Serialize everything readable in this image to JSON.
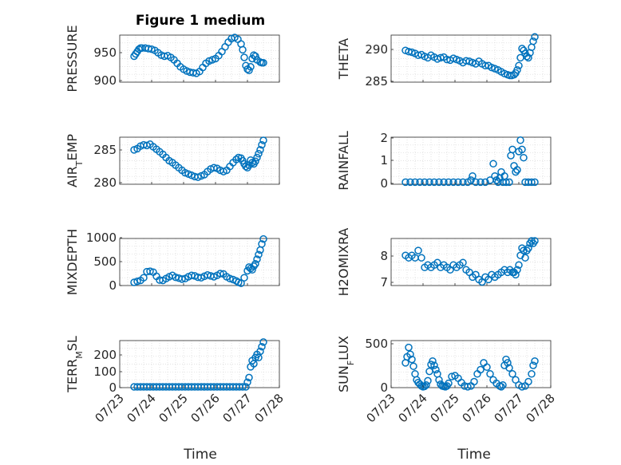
{
  "figure": {
    "title": "Figure 1 medium",
    "xlabel": "Time"
  },
  "chart_data": [
    {
      "type": "scatter",
      "ylabel": "PRESSURE",
      "yticks": [
        "900",
        "950"
      ],
      "ylim": [
        900,
        980
      ],
      "xlim": [
        0,
        5
      ],
      "xticks": [
        "07/23",
        "07/24",
        "07/25",
        "07/26",
        "07/27",
        "07/28"
      ],
      "grid": true,
      "x": [
        0.45,
        0.5,
        0.55,
        0.6,
        0.65,
        0.7,
        0.8,
        0.9,
        1.0,
        1.1,
        1.2,
        1.3,
        1.4,
        1.5,
        1.6,
        1.7,
        1.8,
        1.9,
        2.0,
        2.1,
        2.2,
        2.3,
        2.4,
        2.5,
        2.6,
        2.7,
        2.8,
        2.9,
        3.0,
        3.1,
        3.2,
        3.3,
        3.4,
        3.5,
        3.6,
        3.7,
        3.8,
        3.85,
        3.9,
        3.95,
        4.0,
        4.05,
        4.1,
        4.15,
        4.2,
        4.25,
        4.3,
        4.4,
        4.45,
        4.5
      ],
      "y": [
        944,
        948,
        952,
        956,
        958,
        958,
        958,
        957,
        956,
        954,
        950,
        946,
        944,
        945,
        942,
        938,
        932,
        926,
        922,
        919,
        917,
        916,
        915,
        918,
        925,
        932,
        936,
        938,
        940,
        945,
        952,
        960,
        968,
        974,
        976,
        973,
        965,
        955,
        942,
        928,
        922,
        920,
        926,
        940,
        946,
        944,
        938,
        934,
        933,
        933
      ]
    },
    {
      "type": "scatter",
      "ylabel": "THETA",
      "yticks": [
        "285",
        "290"
      ],
      "ylim": [
        284.8,
        292.5
      ],
      "xlim": [
        0,
        5
      ],
      "xticks": [
        "07/23",
        "07/24",
        "07/25",
        "07/26",
        "07/27",
        "07/28"
      ],
      "grid": true,
      "x": [
        0.45,
        0.55,
        0.65,
        0.75,
        0.85,
        0.95,
        1.05,
        1.15,
        1.25,
        1.35,
        1.45,
        1.55,
        1.65,
        1.75,
        1.85,
        1.95,
        2.05,
        2.15,
        2.25,
        2.35,
        2.45,
        2.55,
        2.65,
        2.75,
        2.85,
        2.95,
        3.05,
        3.15,
        3.25,
        3.35,
        3.45,
        3.55,
        3.65,
        3.72,
        3.78,
        3.85,
        3.9,
        3.95,
        4.0,
        4.05,
        4.1,
        4.15,
        4.2,
        4.25,
        4.3,
        4.35,
        4.4,
        4.45,
        4.5
      ],
      "y": [
        290.0,
        289.8,
        289.7,
        289.5,
        289.2,
        289.3,
        289.0,
        288.8,
        289.2,
        288.9,
        288.6,
        288.8,
        288.9,
        288.5,
        288.4,
        288.7,
        288.5,
        288.3,
        288.0,
        288.3,
        288.2,
        288.0,
        287.8,
        288.2,
        287.8,
        287.5,
        287.5,
        287.2,
        287.0,
        286.8,
        286.5,
        286.2,
        286.0,
        285.9,
        285.9,
        286.0,
        286.3,
        286.8,
        287.5,
        288.8,
        290.3,
        290.0,
        289.5,
        289.0,
        288.8,
        289.6,
        290.5,
        291.5,
        292.2
      ]
    },
    {
      "type": "scatter",
      "ylabel": "AIR_TEMP",
      "yticks": [
        "280",
        "285"
      ],
      "ylim": [
        279.8,
        287.2
      ],
      "xlim": [
        0,
        5
      ],
      "xticks": [
        "07/23",
        "07/24",
        "07/25",
        "07/26",
        "07/27",
        "07/28"
      ],
      "grid": true,
      "x": [
        0.45,
        0.55,
        0.65,
        0.75,
        0.85,
        0.95,
        1.05,
        1.15,
        1.25,
        1.35,
        1.45,
        1.55,
        1.65,
        1.75,
        1.85,
        1.95,
        2.05,
        2.15,
        2.25,
        2.35,
        2.45,
        2.55,
        2.65,
        2.75,
        2.85,
        2.95,
        3.05,
        3.15,
        3.25,
        3.35,
        3.45,
        3.55,
        3.65,
        3.72,
        3.8,
        3.85,
        3.9,
        3.95,
        4.0,
        4.05,
        4.1,
        4.15,
        4.2,
        4.25,
        4.3,
        4.35,
        4.4,
        4.45,
        4.5
      ],
      "y": [
        285.2,
        285.4,
        285.8,
        286.0,
        285.9,
        286.1,
        285.7,
        285.3,
        284.9,
        284.5,
        284.0,
        283.5,
        283.2,
        282.8,
        282.4,
        282.0,
        281.6,
        281.4,
        281.2,
        281.0,
        280.9,
        281.1,
        281.3,
        281.8,
        282.2,
        282.4,
        282.3,
        282.0,
        281.8,
        282.0,
        282.6,
        283.2,
        283.7,
        284.0,
        283.9,
        283.5,
        283.0,
        282.6,
        282.4,
        282.8,
        283.6,
        283.2,
        283.0,
        283.4,
        284.0,
        284.6,
        285.2,
        286.0,
        286.7
      ]
    },
    {
      "type": "scatter",
      "ylabel": "RAINFALL",
      "yticks": [
        "0",
        "1",
        "2"
      ],
      "ylim": [
        -0.1,
        2.2
      ],
      "xlim": [
        0,
        5
      ],
      "xticks": [
        "07/23",
        "07/24",
        "07/25",
        "07/26",
        "07/27",
        "07/28"
      ],
      "grid": true,
      "x": [
        0.45,
        0.6,
        0.75,
        0.9,
        1.05,
        1.2,
        1.35,
        1.5,
        1.65,
        1.8,
        1.95,
        2.1,
        2.25,
        2.4,
        2.5,
        2.55,
        2.65,
        2.8,
        2.95,
        3.1,
        3.2,
        3.25,
        3.3,
        3.35,
        3.4,
        3.45,
        3.5,
        3.55,
        3.6,
        3.7,
        3.75,
        3.8,
        3.85,
        3.9,
        3.95,
        4.0,
        4.05,
        4.1,
        4.15,
        4.2,
        4.3,
        4.4,
        4.5
      ],
      "y": [
        0,
        0,
        0,
        0,
        0,
        0,
        0,
        0,
        0,
        0,
        0,
        0,
        0,
        0,
        0.1,
        0.3,
        0,
        0,
        0,
        0.1,
        0.9,
        0.3,
        0.1,
        0,
        0.2,
        0.5,
        0,
        0.3,
        0,
        0,
        1.3,
        1.6,
        0.8,
        0.5,
        0.6,
        1.5,
        2.05,
        1.6,
        1.2,
        0,
        0,
        0,
        0
      ]
    },
    {
      "type": "scatter",
      "ylabel": "MIXDEPTH",
      "yticks": [
        "0",
        "500",
        "1000"
      ],
      "ylim": [
        -20,
        1000
      ],
      "xlim": [
        0,
        5
      ],
      "xticks": [
        "07/23",
        "07/24",
        "07/25",
        "07/26",
        "07/27",
        "07/28"
      ],
      "grid": true,
      "x": [
        0.45,
        0.55,
        0.65,
        0.75,
        0.85,
        0.95,
        1.05,
        1.15,
        1.25,
        1.35,
        1.45,
        1.55,
        1.65,
        1.75,
        1.85,
        1.95,
        2.05,
        2.15,
        2.25,
        2.35,
        2.45,
        2.55,
        2.65,
        2.75,
        2.85,
        2.95,
        3.05,
        3.15,
        3.25,
        3.35,
        3.45,
        3.55,
        3.65,
        3.72,
        3.8,
        3.9,
        4.0,
        4.05,
        4.1,
        4.15,
        4.2,
        4.25,
        4.3,
        4.35,
        4.4,
        4.45,
        4.5
      ],
      "y": [
        50,
        70,
        90,
        150,
        280,
        290,
        270,
        180,
        100,
        90,
        130,
        170,
        200,
        160,
        140,
        120,
        130,
        170,
        200,
        190,
        160,
        150,
        180,
        210,
        190,
        170,
        200,
        240,
        230,
        170,
        130,
        110,
        80,
        50,
        30,
        150,
        300,
        380,
        350,
        320,
        400,
        450,
        550,
        650,
        750,
        880,
        990
      ]
    },
    {
      "type": "scatter",
      "ylabel": "H2OMIXRA",
      "yticks": [
        "7",
        "8"
      ],
      "ylim": [
        6.85,
        8.8
      ],
      "xlim": [
        0,
        5
      ],
      "xticks": [
        "07/23",
        "07/24",
        "07/25",
        "07/26",
        "07/27",
        "07/28"
      ],
      "grid": true,
      "x": [
        0.45,
        0.55,
        0.65,
        0.75,
        0.85,
        0.95,
        1.05,
        1.15,
        1.25,
        1.35,
        1.45,
        1.55,
        1.65,
        1.75,
        1.85,
        1.95,
        2.05,
        2.15,
        2.25,
        2.35,
        2.45,
        2.55,
        2.65,
        2.75,
        2.85,
        2.95,
        3.05,
        3.15,
        3.25,
        3.35,
        3.45,
        3.55,
        3.65,
        3.72,
        3.8,
        3.85,
        3.9,
        3.95,
        4.0,
        4.05,
        4.1,
        4.15,
        4.2,
        4.25,
        4.3,
        4.35,
        4.4,
        4.45,
        4.5
      ],
      "y": [
        8.1,
        8.0,
        8.1,
        8.0,
        8.3,
        8.0,
        7.6,
        7.7,
        7.6,
        7.7,
        7.8,
        7.6,
        7.7,
        7.6,
        7.5,
        7.7,
        7.6,
        7.7,
        7.8,
        7.5,
        7.4,
        7.2,
        7.3,
        7.1,
        7.0,
        7.2,
        7.1,
        7.3,
        7.2,
        7.3,
        7.4,
        7.5,
        7.4,
        7.5,
        7.4,
        7.4,
        7.3,
        7.5,
        7.7,
        8.1,
        8.4,
        8.3,
        8.0,
        8.3,
        8.4,
        8.6,
        8.7,
        8.6,
        8.7
      ]
    },
    {
      "type": "scatter",
      "ylabel": "TERR_MSL",
      "yticks": [
        "0",
        "100",
        "200"
      ],
      "ylim": [
        -5,
        300
      ],
      "xlim": [
        0,
        5
      ],
      "xticks": [
        "07/23",
        "07/24",
        "07/25",
        "07/26",
        "07/27",
        "07/28"
      ],
      "grid": true,
      "x": [
        0.45,
        0.55,
        0.65,
        0.75,
        0.85,
        0.95,
        1.05,
        1.15,
        1.25,
        1.35,
        1.45,
        1.55,
        1.65,
        1.75,
        1.85,
        1.95,
        2.05,
        2.15,
        2.25,
        2.35,
        2.45,
        2.55,
        2.65,
        2.75,
        2.85,
        2.95,
        3.05,
        3.15,
        3.25,
        3.35,
        3.45,
        3.55,
        3.65,
        3.75,
        3.85,
        3.95,
        4.0,
        4.05,
        4.1,
        4.15,
        4.2,
        4.25,
        4.3,
        4.35,
        4.4,
        4.45,
        4.5
      ],
      "y": [
        0,
        0,
        0,
        0,
        0,
        0,
        0,
        0,
        0,
        0,
        0,
        0,
        0,
        0,
        0,
        0,
        0,
        0,
        0,
        0,
        0,
        0,
        0,
        0,
        0,
        0,
        0,
        0,
        0,
        0,
        0,
        0,
        0,
        0,
        0,
        0,
        30,
        60,
        130,
        170,
        150,
        190,
        210,
        190,
        230,
        260,
        290
      ]
    },
    {
      "type": "scatter",
      "ylabel": "SUN_FLUX",
      "yticks": [
        "0",
        "500"
      ],
      "ylim": [
        -10,
        540
      ],
      "xlim": [
        0,
        5
      ],
      "xticks": [
        "07/23",
        "07/24",
        "07/25",
        "07/26",
        "07/27",
        "07/28"
      ],
      "grid": true,
      "x": [
        0.45,
        0.5,
        0.55,
        0.6,
        0.65,
        0.7,
        0.75,
        0.8,
        0.85,
        0.9,
        0.95,
        1.0,
        1.05,
        1.1,
        1.15,
        1.2,
        1.25,
        1.3,
        1.35,
        1.4,
        1.45,
        1.5,
        1.55,
        1.6,
        1.65,
        1.7,
        1.75,
        1.8,
        1.9,
        2.0,
        2.1,
        2.2,
        2.3,
        2.4,
        2.5,
        2.6,
        2.7,
        2.8,
        2.9,
        3.0,
        3.1,
        3.2,
        3.3,
        3.4,
        3.45,
        3.5,
        3.55,
        3.6,
        3.65,
        3.7,
        3.8,
        3.9,
        4.0,
        4.1,
        4.2,
        4.3,
        4.4,
        4.45,
        4.5
      ],
      "y": [
        280,
        350,
        460,
        380,
        320,
        240,
        150,
        80,
        50,
        30,
        10,
        0,
        5,
        20,
        70,
        180,
        260,
        300,
        250,
        200,
        150,
        80,
        30,
        10,
        5,
        0,
        10,
        40,
        120,
        130,
        100,
        50,
        10,
        0,
        10,
        60,
        150,
        200,
        280,
        230,
        150,
        80,
        40,
        10,
        0,
        20,
        250,
        320,
        280,
        220,
        150,
        80,
        20,
        0,
        10,
        60,
        150,
        250,
        300
      ]
    }
  ]
}
